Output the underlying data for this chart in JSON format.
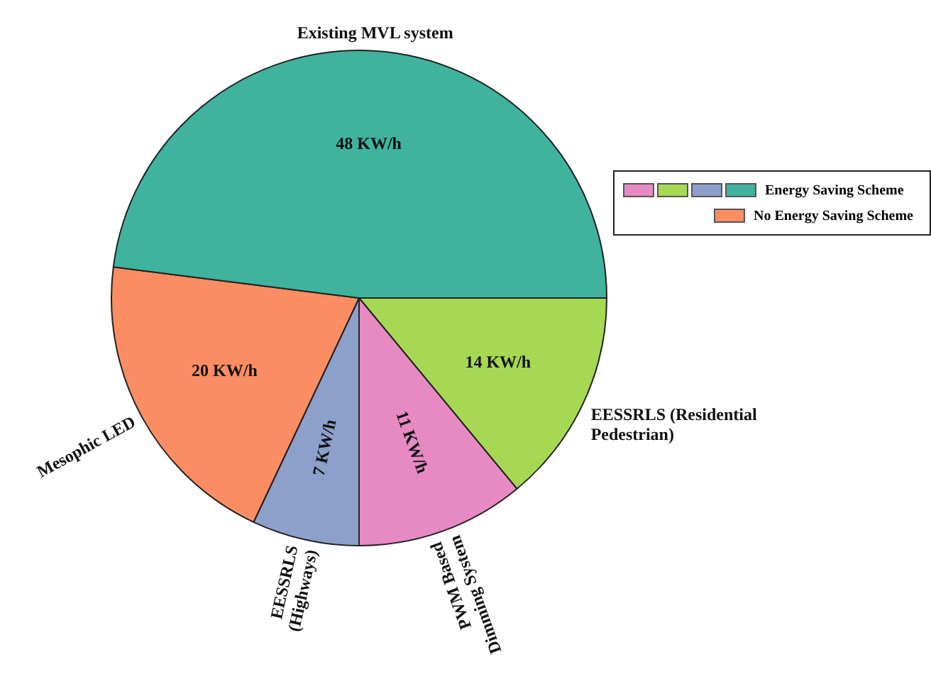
{
  "chart_data": {
    "type": "pie",
    "categories": [
      "EESSRLS (Residential Pedestrian)",
      "PWM Based Dimming System",
      "EESSRLS (Highways)",
      "Mesophic LED",
      "Existing MVL system"
    ],
    "values": [
      14,
      11,
      7,
      20,
      48
    ],
    "value_labels": [
      "14 KW/h",
      "11 KW/h",
      "7 KW/h",
      "20 KW/h",
      "48 KW/h"
    ],
    "colors": [
      "#a6d854",
      "#e78ac3",
      "#8da0cb",
      "#fc8d62",
      "#3fb39e"
    ],
    "annotations": [
      "Energy Saving Scheme",
      "No Energy Saving Scheme"
    ]
  }
}
